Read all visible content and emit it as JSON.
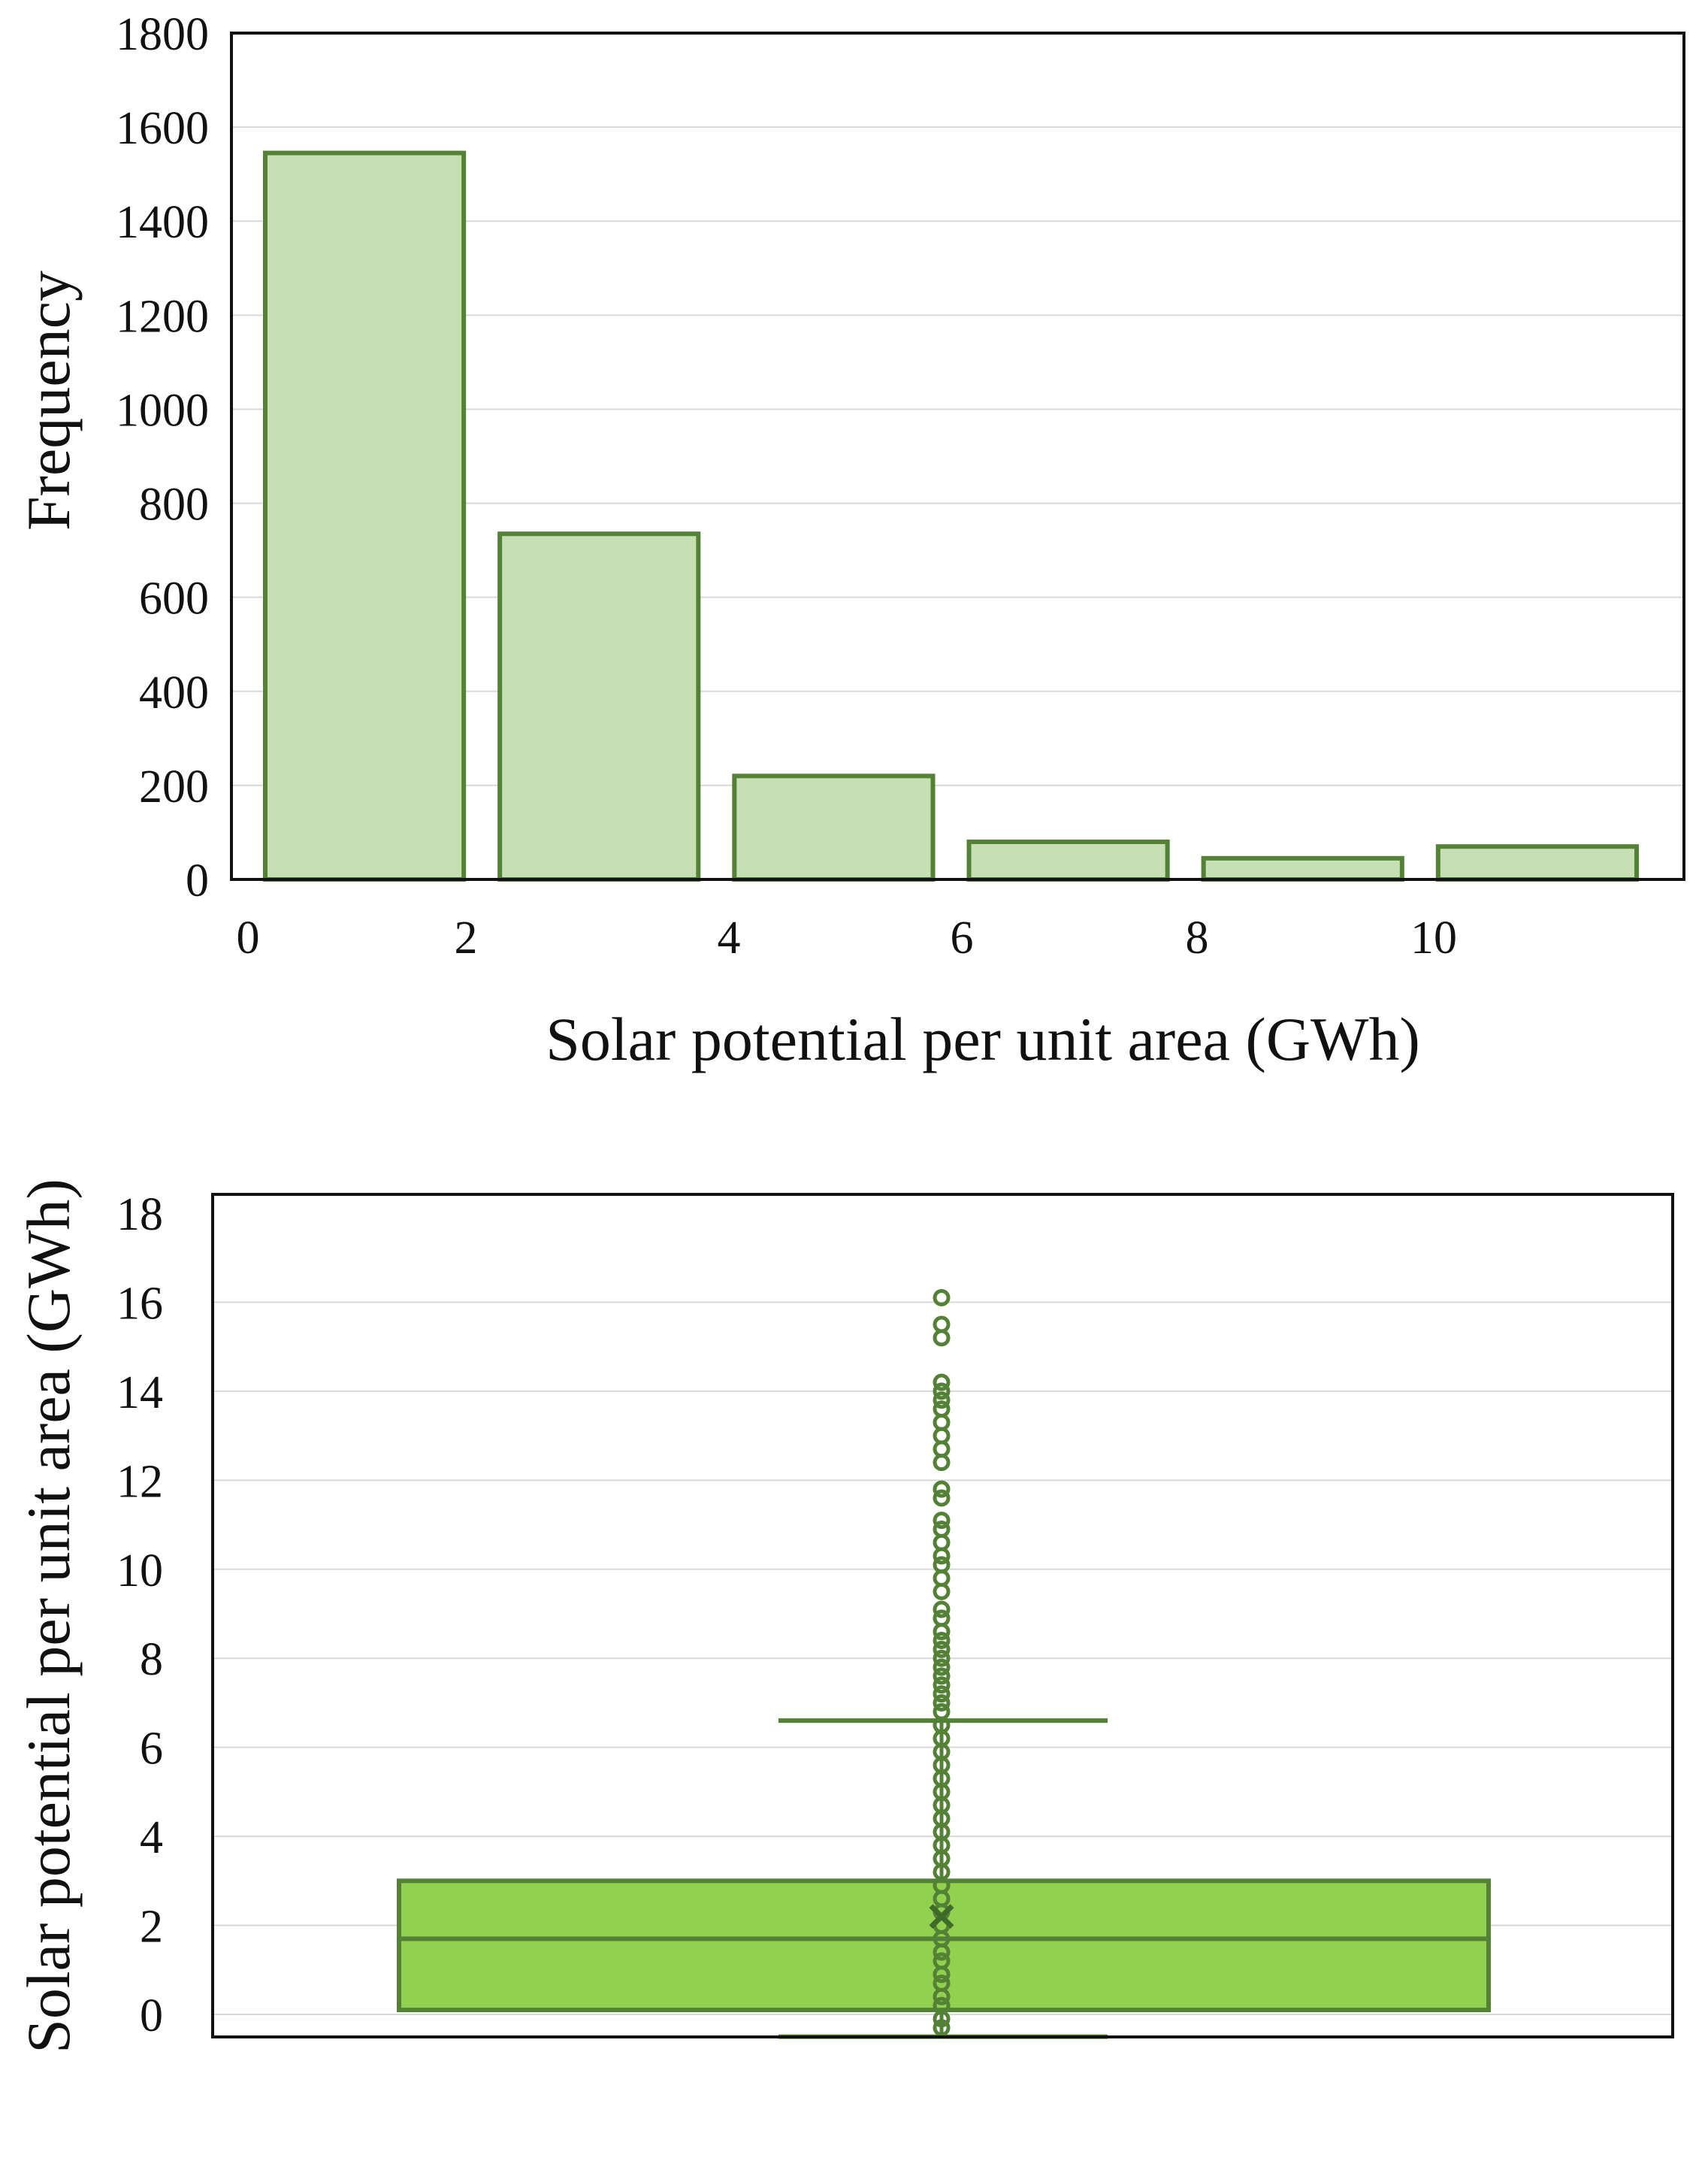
{
  "colors": {
    "hist_fill": "#c6e0b4",
    "hist_stroke": "#538135",
    "box_fill": "#92d050",
    "box_stroke": "#538135",
    "grid": "#d9d9d9",
    "axis": "#111111"
  },
  "chart_data": [
    {
      "type": "bar",
      "title": "",
      "xlabel": "Solar potential per unit area (GWh)",
      "ylabel": "Frequency",
      "ylim": [
        0,
        1800
      ],
      "yticks": [
        0,
        200,
        400,
        600,
        800,
        1000,
        1200,
        1400,
        1600,
        1800
      ],
      "xlim": [
        0,
        12
      ],
      "xticks": [
        0,
        2,
        4,
        6,
        8,
        10
      ],
      "bins": [
        {
          "x0": 0,
          "x1": 2,
          "value": 1545
        },
        {
          "x0": 2,
          "x1": 4,
          "value": 735
        },
        {
          "x0": 4,
          "x1": 6,
          "value": 220
        },
        {
          "x0": 6,
          "x1": 8,
          "value": 80
        },
        {
          "x0": 8,
          "x1": 10,
          "value": 45
        },
        {
          "x0": 10,
          "x1": 12,
          "value": 70
        }
      ],
      "grid": true
    },
    {
      "type": "box",
      "title": "",
      "xlabel": "",
      "ylabel": "Solar potential per unit area (GWh)",
      "ylim": [
        -0.5,
        18
      ],
      "yticks": [
        0,
        2,
        4,
        6,
        8,
        10,
        12,
        14,
        16,
        18
      ],
      "whisker_low": -0.5,
      "q1": 0.1,
      "median": 1.7,
      "mean": 2.2,
      "q3": 3.0,
      "whisker_high": 6.6,
      "outliers": [
        6.8,
        7.0,
        7.2,
        7.4,
        7.6,
        7.8,
        8.0,
        8.2,
        8.4,
        8.6,
        8.9,
        9.1,
        9.5,
        9.8,
        10.1,
        10.3,
        10.6,
        10.9,
        11.1,
        11.6,
        11.8,
        12.4,
        12.7,
        13.0,
        13.3,
        13.6,
        13.8,
        14.0,
        14.2,
        15.2,
        15.5,
        16.1
      ],
      "inner_points": [
        -0.3,
        -0.1,
        0.2,
        0.4,
        0.7,
        0.9,
        1.2,
        1.4,
        1.7,
        2.0,
        2.3,
        2.6,
        2.9,
        3.2,
        3.5,
        3.8,
        4.1,
        4.4,
        4.7,
        5.0,
        5.3,
        5.6,
        5.9,
        6.2,
        6.5
      ],
      "grid": true
    }
  ]
}
